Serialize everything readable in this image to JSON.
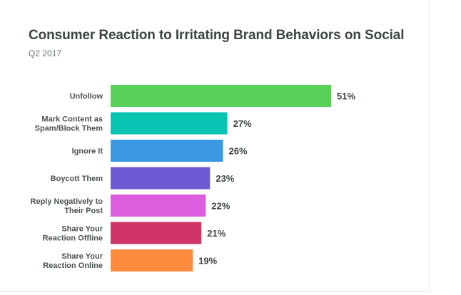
{
  "chart_data": {
    "type": "bar",
    "orientation": "horizontal",
    "title": "Consumer Reaction to Irritating Brand Behaviors on Social",
    "subtitle": "Q2 2017",
    "categories": [
      [
        "Unfollow"
      ],
      [
        "Mark Content as",
        "Spam/Block Them"
      ],
      [
        "Ignore It"
      ],
      [
        "Boycott Them"
      ],
      [
        "Reply Negatively to",
        "Their Post"
      ],
      [
        "Share Your",
        "Reaction Offline"
      ],
      [
        "Share Your",
        "Reaction Online"
      ]
    ],
    "values": [
      51,
      27,
      26,
      23,
      22,
      21,
      19
    ],
    "value_labels": [
      "51%",
      "27%",
      "26%",
      "23%",
      "22%",
      "21%",
      "19%"
    ],
    "colors": [
      "#59d05a",
      "#0ac4b3",
      "#3b99e3",
      "#6e5bd3",
      "#dc5ede",
      "#cf3566",
      "#fd8a3d"
    ],
    "grid": false,
    "legend": "none"
  }
}
